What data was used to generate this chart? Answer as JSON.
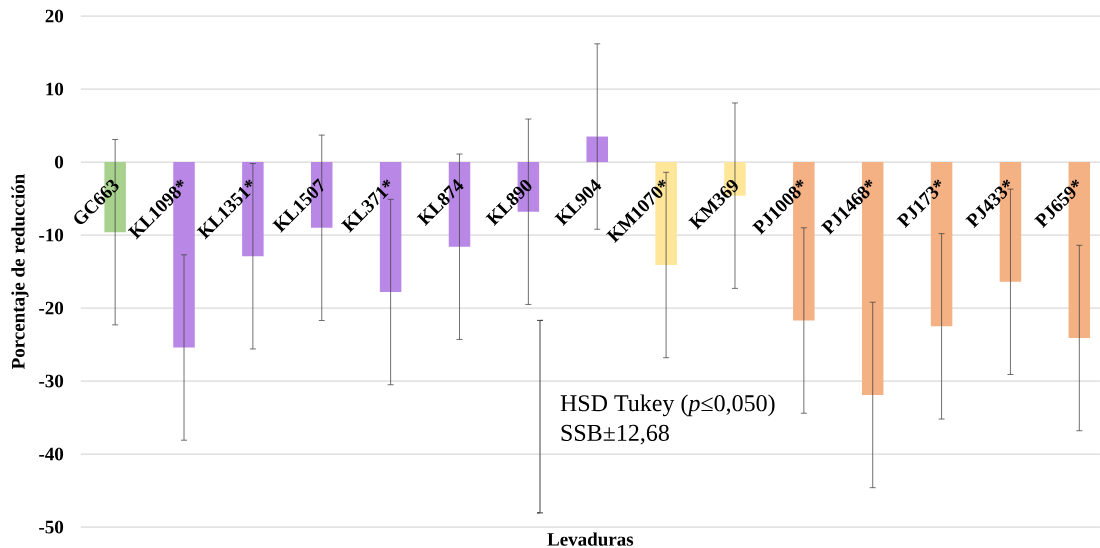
{
  "chart_data": {
    "type": "bar",
    "xlabel": "Levaduras",
    "ylabel": "Porcentaje de reducción",
    "categories": [
      "GC663",
      "KL1098*",
      "KL1351*",
      "KL1507",
      "KL371*",
      "KL874",
      "KL890",
      "KL904",
      "KM1070*",
      "KM369",
      "PJ1008*",
      "PJ1468*",
      "PJ173*",
      "PJ433*",
      "PJ659*"
    ],
    "values": [
      -9.6,
      -25.4,
      -12.9,
      -9.0,
      -17.8,
      -11.6,
      -6.8,
      3.5,
      -14.1,
      -4.6,
      -21.7,
      -31.9,
      -22.5,
      -16.4,
      -24.1
    ],
    "errors": [
      12.7,
      12.7,
      12.7,
      12.7,
      12.7,
      12.7,
      12.7,
      12.7,
      12.7,
      12.7,
      12.7,
      12.7,
      12.7,
      12.7,
      12.7
    ],
    "colors": [
      "#a9d18e",
      "#b987e6",
      "#b987e6",
      "#b987e6",
      "#b987e6",
      "#b987e6",
      "#b987e6",
      "#b987e6",
      "#ffe699",
      "#ffe699",
      "#f4b183",
      "#f4b183",
      "#f4b183",
      "#f4b183",
      "#f4b183"
    ],
    "ylim": [
      -50,
      20
    ],
    "yticks": [
      -50,
      -40,
      -30,
      -20,
      -10,
      0,
      10,
      20
    ],
    "grid": "y",
    "annotations": [
      "HSD Tukey (*p*≤0,050)",
      "SSB±12,68"
    ]
  }
}
